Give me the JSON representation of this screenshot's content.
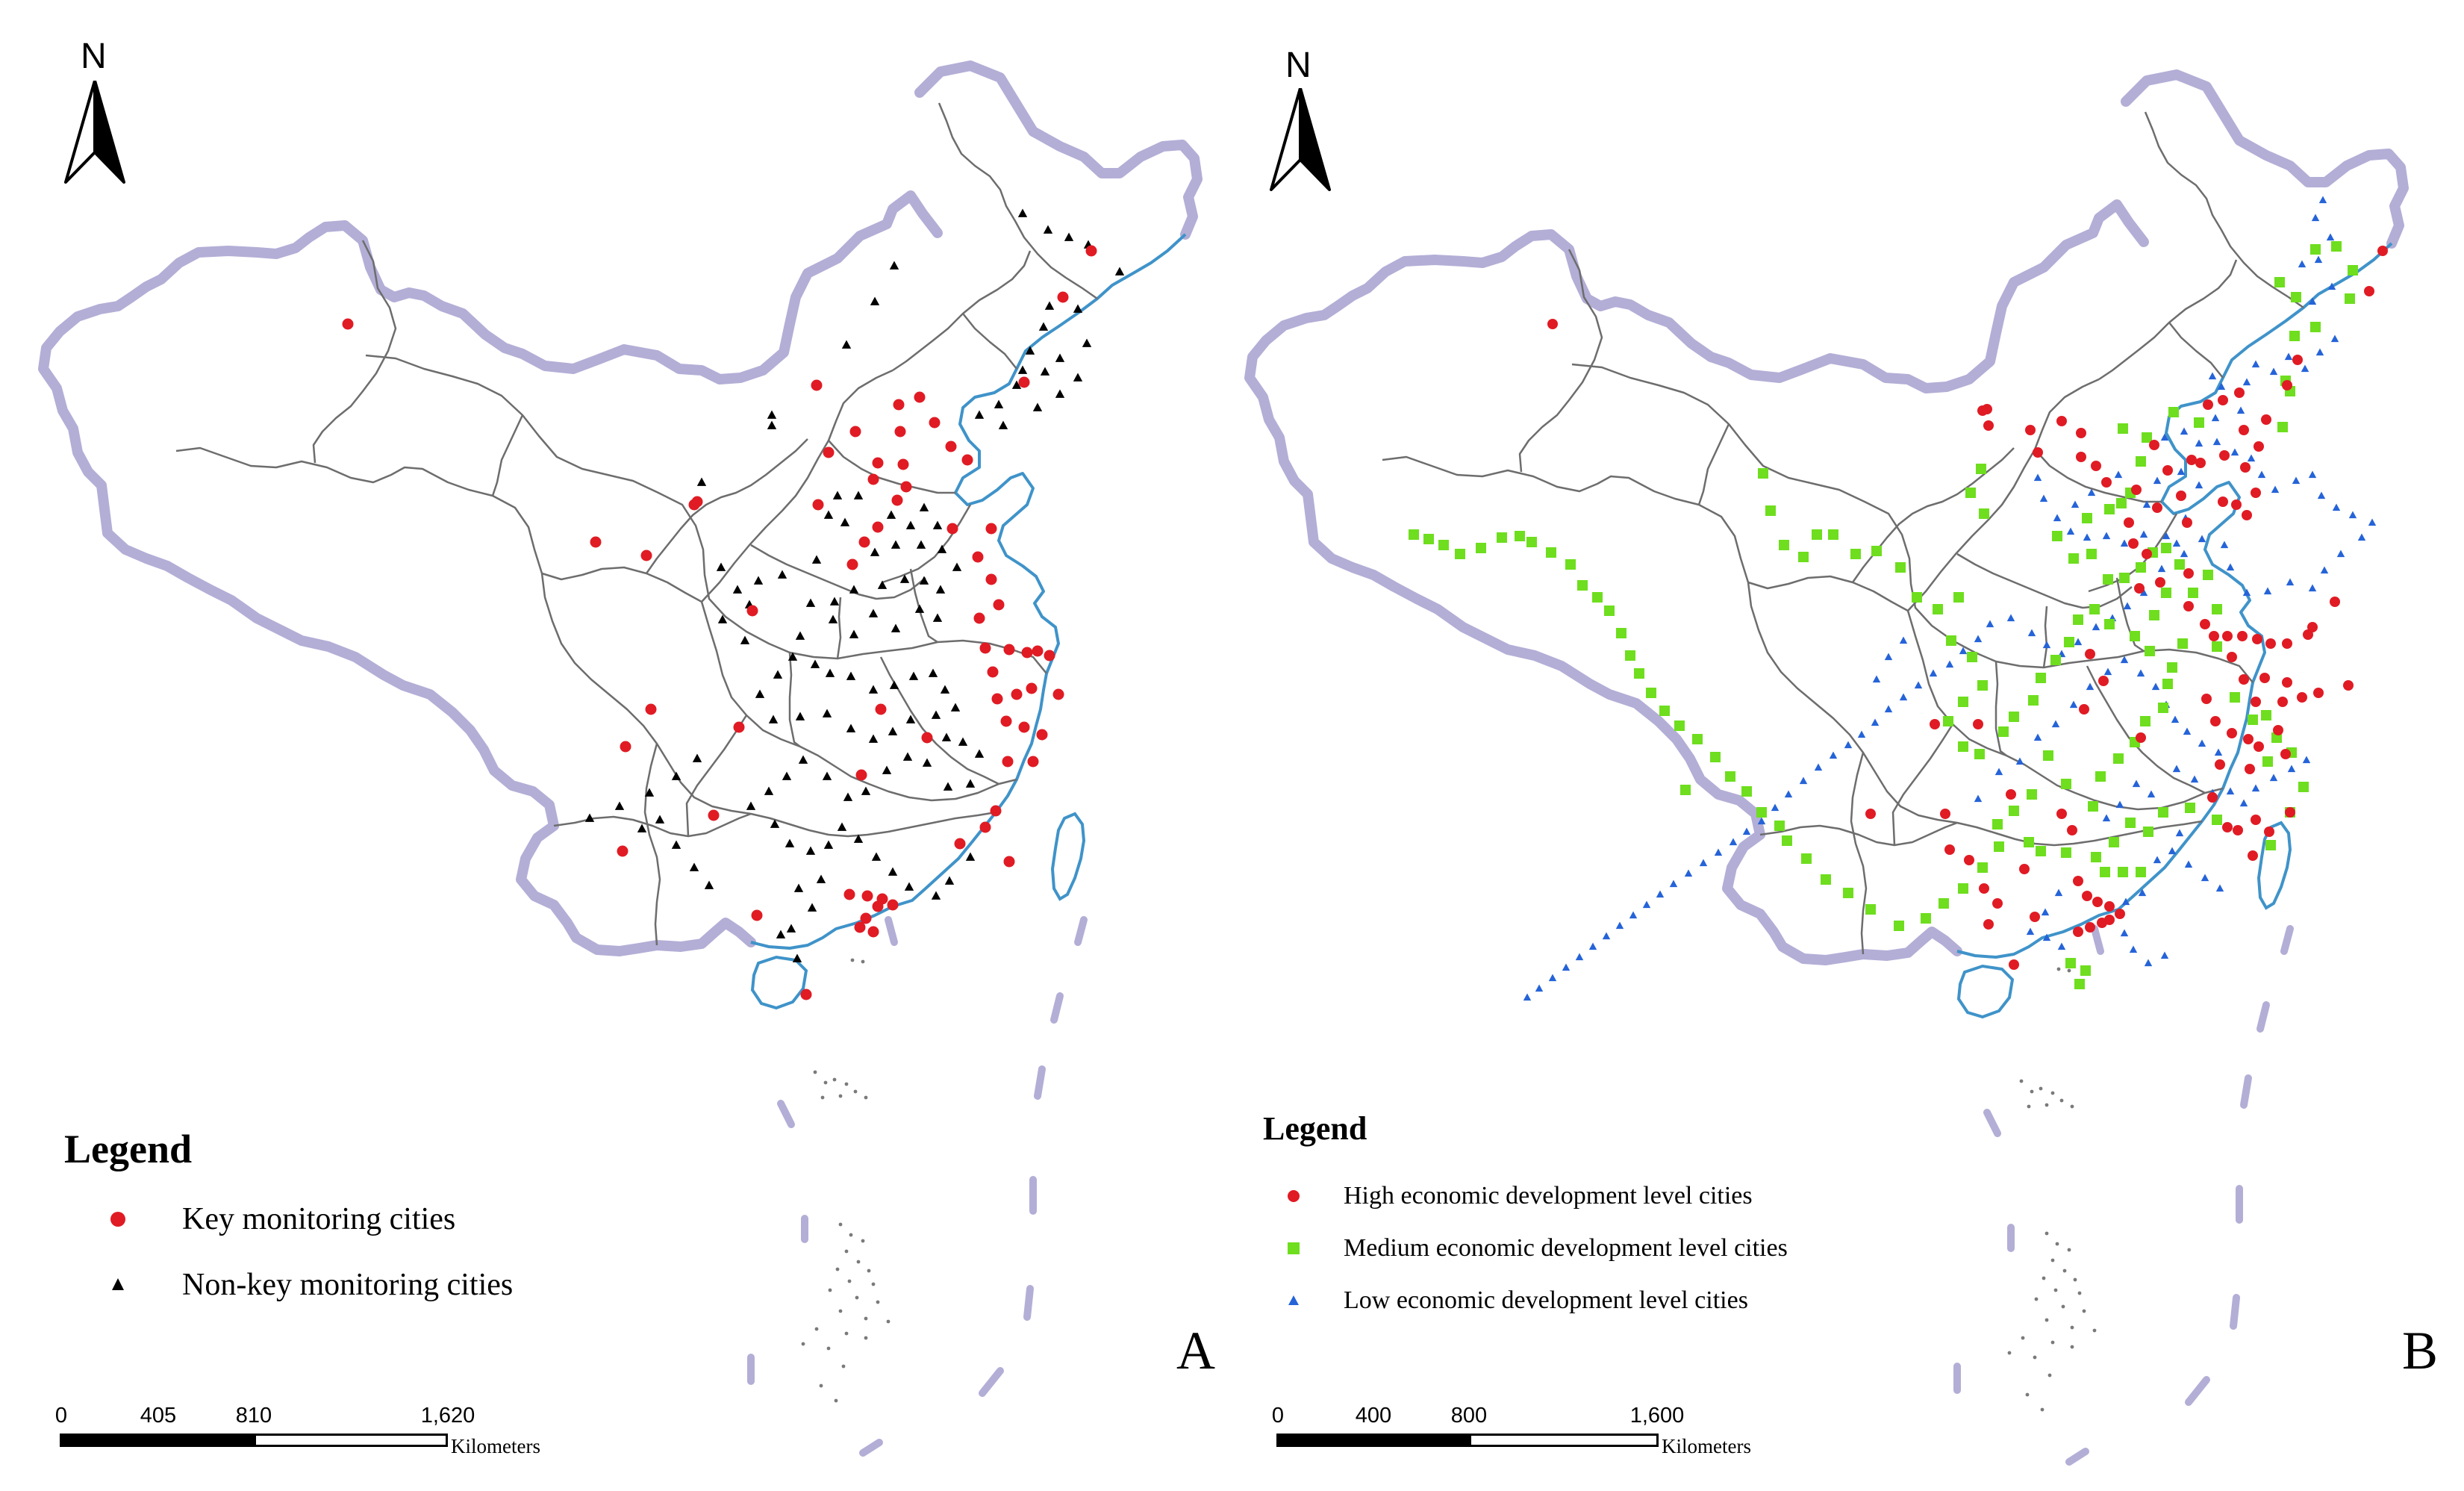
{
  "colors": {
    "border": "#b3aed6",
    "coastline": "#3f93c9",
    "province": "#6d6d6d",
    "key_city": "#e01b24",
    "non_key_city": "#000000",
    "high_city": "#e01b24",
    "medium_city": "#6ede1e",
    "low_city": "#2563d8"
  },
  "north_label": "N",
  "panel_a": {
    "letter": "A",
    "legend": {
      "title": "Legend",
      "items": [
        {
          "label": "Key monitoring cities",
          "symbol": "red-circle-icon"
        },
        {
          "label": "Non-key monitoring cities",
          "symbol": "black-triangle-icon"
        }
      ]
    },
    "scale": {
      "ticks": [
        "0",
        "405",
        "810",
        "1,620"
      ],
      "unit": "Kilometers"
    }
  },
  "panel_b": {
    "letter": "B",
    "legend": {
      "title": "Legend",
      "items": [
        {
          "label": "High economic development level cities",
          "symbol": "red-circle-icon"
        },
        {
          "label": "Medium economic development level cities",
          "symbol": "green-square-icon"
        },
        {
          "label": "Low economic development level cities",
          "symbol": "blue-triangle-icon"
        }
      ]
    },
    "scale": {
      "ticks": [
        "0",
        "400",
        "800",
        "1,600"
      ],
      "unit": "Kilometers"
    }
  }
}
